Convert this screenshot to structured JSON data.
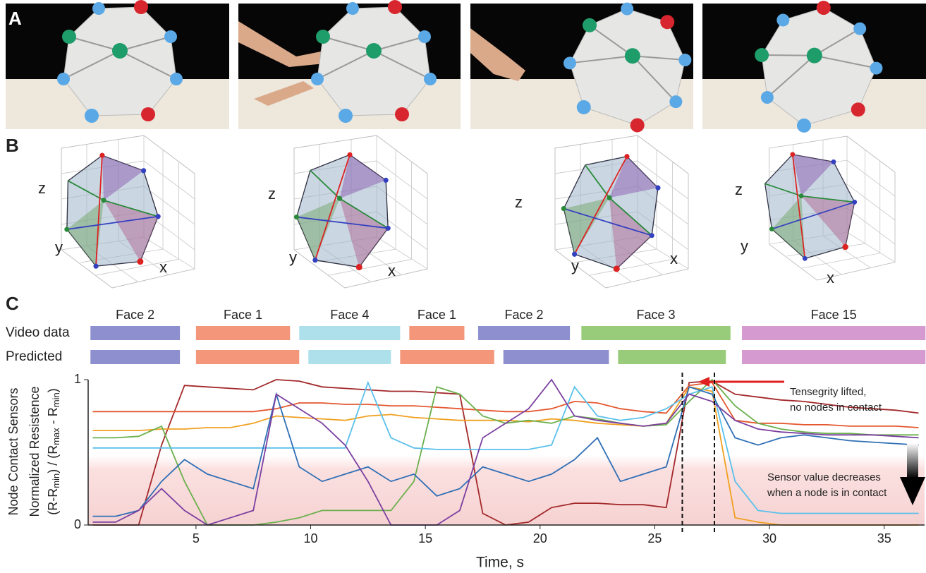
{
  "panels": {
    "a": "A",
    "b": "B",
    "c": "C"
  },
  "panel_b_axes": [
    {
      "z": "z",
      "y": "y",
      "x": "x"
    },
    {
      "z": "z",
      "y": "y",
      "x": "x"
    },
    {
      "z": "z",
      "y": "y",
      "x": "x"
    },
    {
      "z": "z",
      "y": "y",
      "x": "x"
    }
  ],
  "chart_data": {
    "type": "line",
    "x_label": "Time, s",
    "y_label": [
      "Node Contact Sensors",
      "Normalized Resistence",
      [
        "(R-R",
        "min",
        ") / (R",
        "max",
        " - R",
        "min",
        ")"
      ]
    ],
    "row_labels": [
      "Video data",
      "Predicted"
    ],
    "video_segments": [
      {
        "label": "Face 2",
        "start": 0.4,
        "end": 4.3,
        "color": "#8d8fcf"
      },
      {
        "label": "Face 1",
        "start": 5.0,
        "end": 9.1,
        "color": "#f4967a"
      },
      {
        "label": "Face 4",
        "start": 9.5,
        "end": 13.9,
        "color": "#ade0ea"
      },
      {
        "label": "Face 1",
        "start": 14.3,
        "end": 16.7,
        "color": "#f4967a"
      },
      {
        "label": "Face 2",
        "start": 17.3,
        "end": 21.3,
        "color": "#8d8fcf"
      },
      {
        "label": "Face 3",
        "start": 21.8,
        "end": 28.3,
        "color": "#99cc7a"
      },
      {
        "label": "Face 15",
        "start": 28.8,
        "end": 36.8,
        "color": "#d59bd0"
      }
    ],
    "predicted_segments": [
      {
        "start": 0.4,
        "end": 4.3,
        "color": "#8d8fcf"
      },
      {
        "start": 5.0,
        "end": 9.5,
        "color": "#f4967a"
      },
      {
        "start": 9.9,
        "end": 13.5,
        "color": "#ade0ea"
      },
      {
        "start": 13.9,
        "end": 18.0,
        "color": "#f4967a"
      },
      {
        "start": 18.4,
        "end": 23.0,
        "color": "#8d8fcf"
      },
      {
        "start": 23.4,
        "end": 28.1,
        "color": "#99cc7a"
      },
      {
        "start": 28.8,
        "end": 36.8,
        "color": "#d59bd0"
      }
    ],
    "xlim": [
      0.3,
      36.7
    ],
    "ylim": [
      0,
      1
    ],
    "xticks": [
      5,
      10,
      15,
      20,
      25,
      30,
      35
    ],
    "yticks": [
      0,
      1
    ],
    "markers_x": [
      26.2,
      27.6
    ],
    "annotations": [
      "Tensegrity lifted,",
      "no nodes in contact",
      "Sensor value decreases",
      "when a node is in contact"
    ],
    "x": [
      0.5,
      1.5,
      2.5,
      3.5,
      4.5,
      5.5,
      6.5,
      7.5,
      8.5,
      9.5,
      10.5,
      11.5,
      12.5,
      13.5,
      14.5,
      15.5,
      16.5,
      17.5,
      18.5,
      19.5,
      20.5,
      21.5,
      22.5,
      23.5,
      24.5,
      25.5,
      26.5,
      27.5,
      28.5,
      29.5,
      30.5,
      31.5,
      32.5,
      33.5,
      34.5,
      35.5,
      36.5
    ],
    "series": [
      {
        "color": "#a3282a",
        "values": [
          0,
          0,
          0,
          0.55,
          0.96,
          0.95,
          0.94,
          0.93,
          1,
          0.99,
          0.95,
          0.94,
          0.93,
          0.92,
          0.92,
          0.91,
          0.9,
          0.08,
          0,
          0.02,
          0.12,
          0.15,
          0.15,
          0.14,
          0.14,
          0.12,
          0.98,
          0.99,
          0.9,
          0.88,
          0.86,
          0.85,
          0.83,
          0.81,
          0.8,
          0.79,
          0.77
        ]
      },
      {
        "color": "#e4572e",
        "values": [
          0.78,
          0.78,
          0.78,
          0.78,
          0.78,
          0.78,
          0.78,
          0.78,
          0.8,
          0.84,
          0.84,
          0.83,
          0.83,
          0.82,
          0.82,
          0.81,
          0.8,
          0.79,
          0.78,
          0.78,
          0.8,
          0.85,
          0.84,
          0.8,
          0.78,
          0.77,
          0.96,
          0.98,
          0.72,
          0.7,
          0.7,
          0.69,
          0.69,
          0.68,
          0.68,
          0.68,
          0.67
        ]
      },
      {
        "color": "#f0a020",
        "values": [
          0.65,
          0.65,
          0.65,
          0.66,
          0.66,
          0.67,
          0.67,
          0.7,
          0.75,
          0.74,
          0.73,
          0.72,
          0.75,
          0.76,
          0.74,
          0.73,
          0.72,
          0.72,
          0.72,
          0.71,
          0.73,
          0.72,
          0.7,
          0.69,
          0.68,
          0.7,
          0.95,
          0.92,
          0.05,
          0.02,
          0,
          0,
          0,
          0,
          0,
          0,
          0
        ]
      },
      {
        "color": "#6ab04c",
        "values": [
          0.6,
          0.6,
          0.61,
          0.68,
          0.3,
          0,
          0,
          0,
          0.02,
          0.05,
          0.1,
          0.1,
          0.1,
          0.1,
          0.3,
          0.95,
          0.9,
          0.75,
          0.7,
          0.72,
          0.7,
          0.75,
          0.73,
          0.7,
          0.68,
          0.69,
          0.85,
          1,
          0.82,
          0.7,
          0.66,
          0.64,
          0.63,
          0.63,
          0.62,
          0.62,
          0.62
        ]
      },
      {
        "color": "#5bc0eb",
        "values": [
          0.53,
          0.53,
          0.53,
          0.53,
          0.53,
          0.53,
          0.53,
          0.53,
          0.53,
          0.53,
          0.53,
          0.53,
          0.98,
          0.6,
          0.53,
          0.52,
          0.52,
          0.52,
          0.52,
          0.52,
          0.55,
          0.95,
          0.75,
          0.72,
          0.74,
          0.8,
          0.9,
          0.95,
          0.3,
          0.1,
          0.08,
          0.08,
          0.08,
          0.08,
          0.08,
          0.08,
          0.08
        ]
      },
      {
        "color": "#2f6fb5",
        "values": [
          0.06,
          0.06,
          0.1,
          0.3,
          0.45,
          0.35,
          0.3,
          0.25,
          0.9,
          0.4,
          0.3,
          0.35,
          0.4,
          0.3,
          0.35,
          0.2,
          0.25,
          0.4,
          0.35,
          0.3,
          0.35,
          0.45,
          0.6,
          0.3,
          0.35,
          0.4,
          0.95,
          0.9,
          0.6,
          0.55,
          0.6,
          0.62,
          0.6,
          0.58,
          0.57,
          0.56,
          0.55
        ]
      },
      {
        "color": "#7b3fa0",
        "values": [
          0.02,
          0.02,
          0.1,
          0.25,
          0.1,
          0,
          0.05,
          0.1,
          0.9,
          0.8,
          0.7,
          0.55,
          0.3,
          0,
          0,
          0,
          0.1,
          0.6,
          0.7,
          0.8,
          1,
          0.75,
          0.72,
          0.7,
          0.68,
          0.7,
          0.9,
          0.85,
          0.72,
          0.66,
          0.64,
          0.63,
          0.62,
          0.62,
          0.62,
          0.61,
          0.6
        ]
      }
    ]
  }
}
